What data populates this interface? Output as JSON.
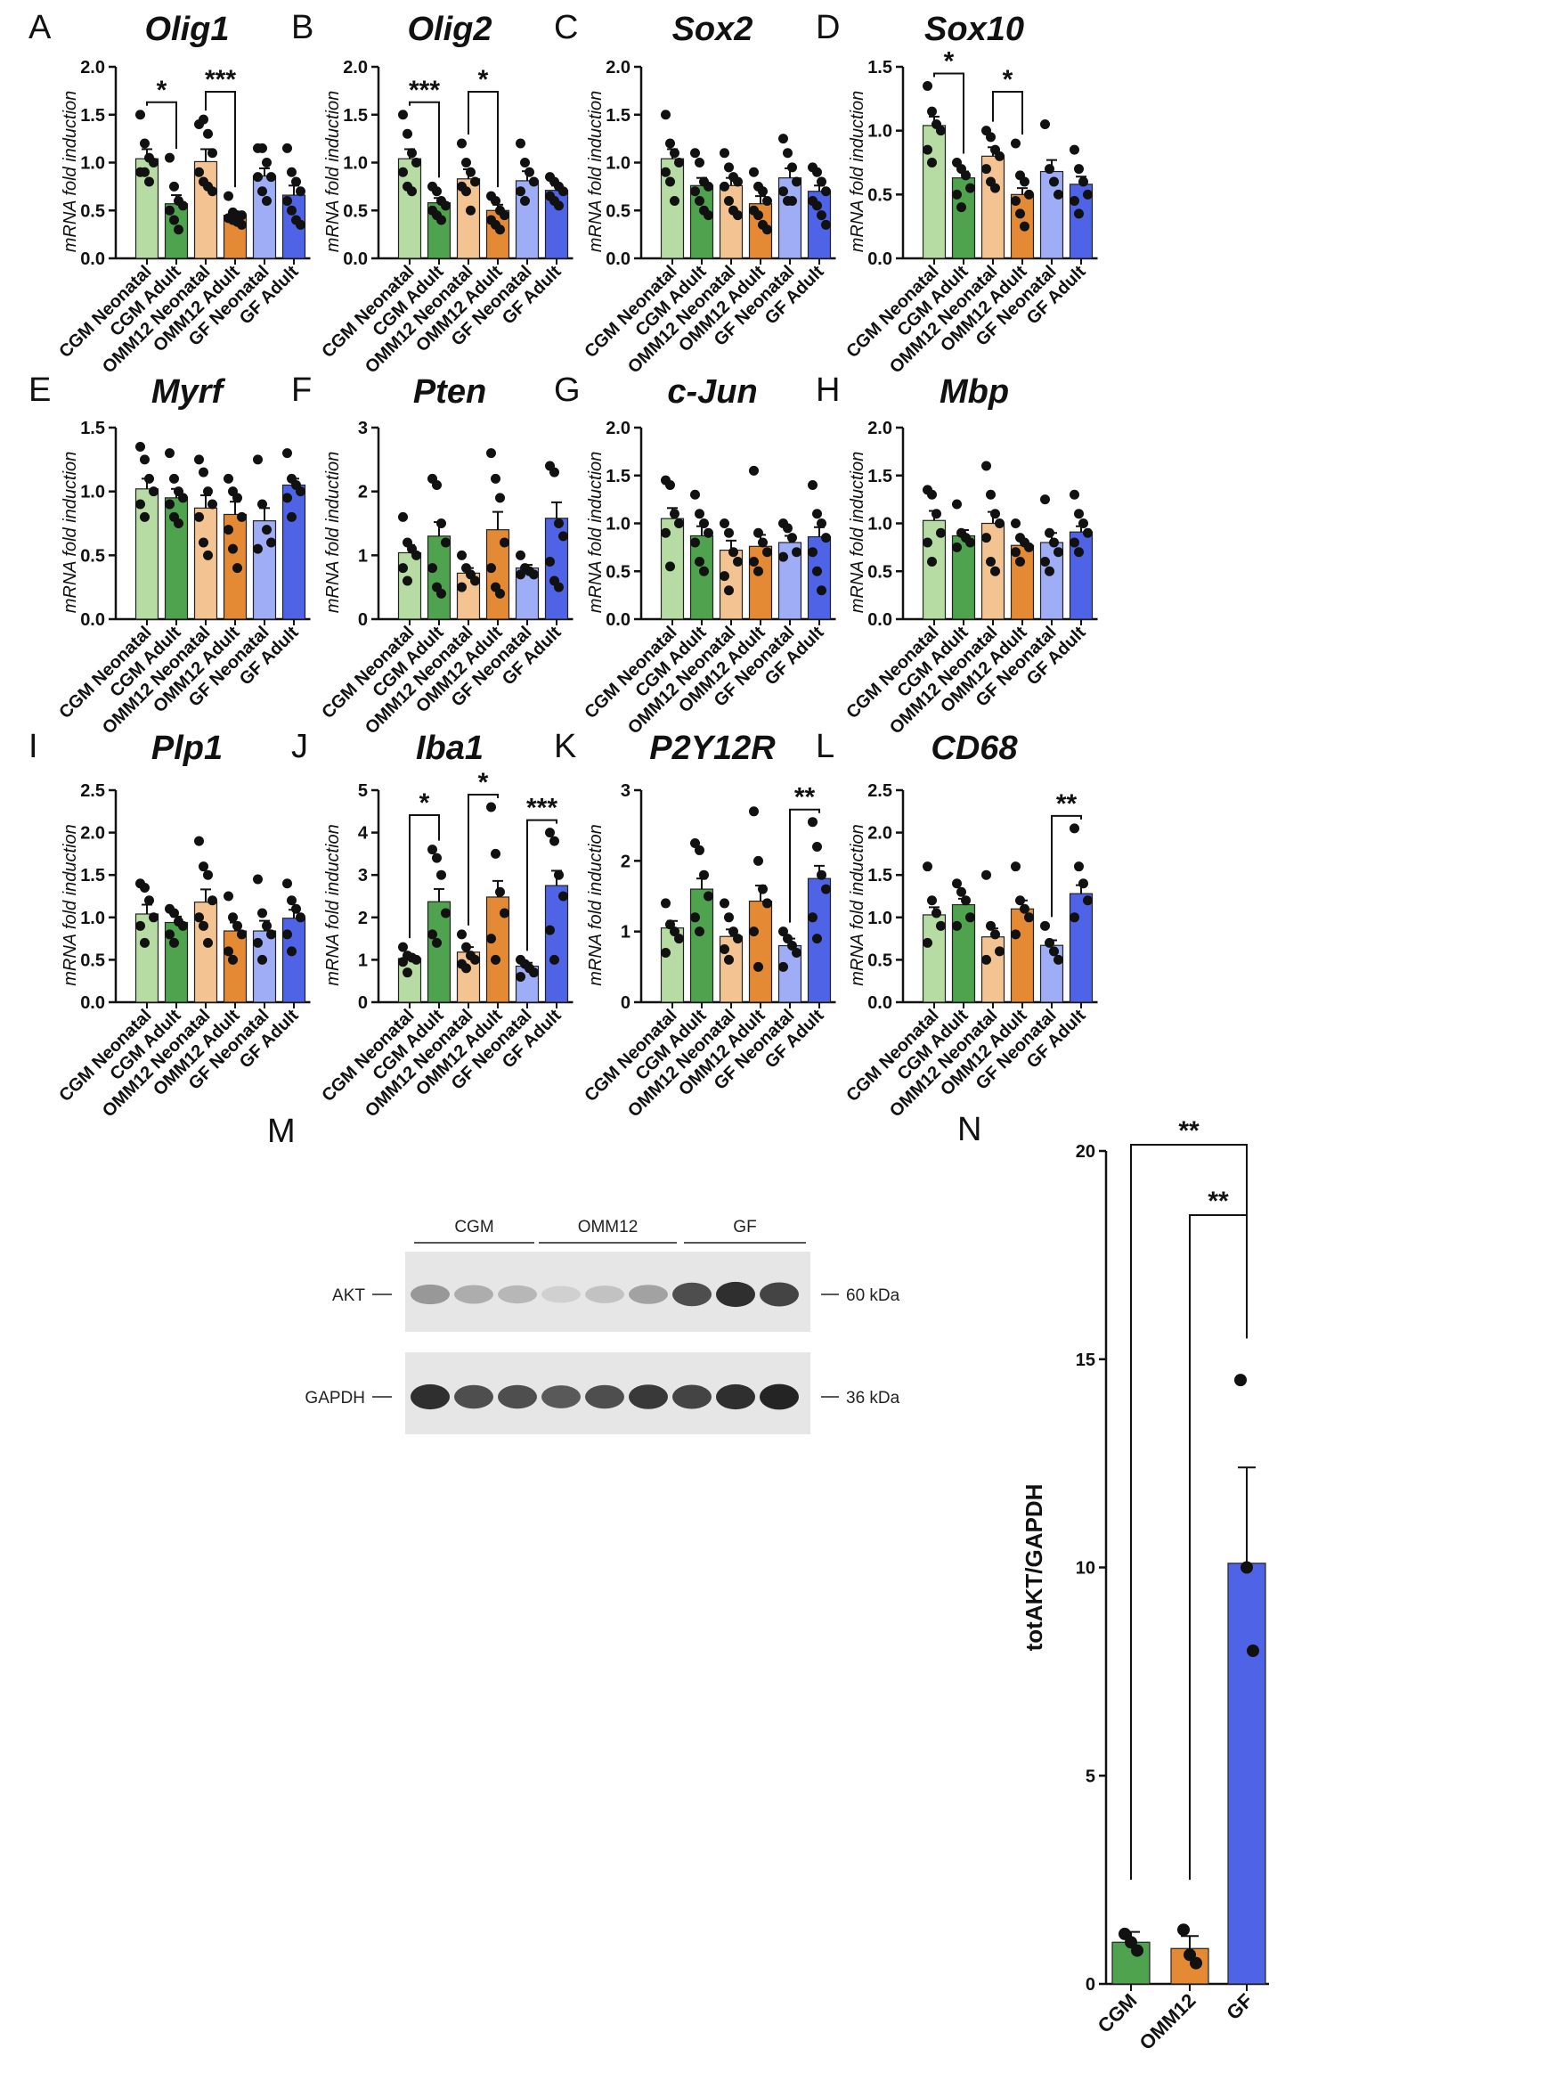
{
  "figure": {
    "ylabel_mrna": "mRNA  fold induction"
  },
  "colors": {
    "CGM Neonatal": "#b6dba3",
    "CGM Adult": "#4fa24e",
    "OMM12 Neonatal": "#f3c391",
    "OMM12 Adult": "#e48a34",
    "GF Neonatal": "#9eadf5",
    "GF Adult": "#4f63e6",
    "dot": "#111111"
  },
  "chart_data": [
    {
      "panel": "A",
      "title": "Olig1",
      "type": "bar",
      "ylim": [
        0,
        2.0
      ],
      "yticks": [
        "0.0",
        "0.5",
        "1.0",
        "1.5",
        "2.0"
      ],
      "categories": [
        "CGM Neonatal",
        "CGM Adult",
        "OMM12 Neonatal",
        "OMM12 Adult",
        "GF Neonatal",
        "GF Adult"
      ],
      "values": [
        1.04,
        0.57,
        1.01,
        0.45,
        0.86,
        0.66
      ],
      "sem": [
        0.1,
        0.09,
        0.13,
        0.03,
        0.08,
        0.1
      ],
      "points": [
        [
          1.5,
          1.2,
          1.05,
          1.0,
          0.9,
          0.9,
          0.8
        ],
        [
          1.05,
          0.75,
          0.6,
          0.55,
          0.5,
          0.4,
          0.3
        ],
        [
          1.4,
          1.45,
          1.3,
          1.1,
          0.9,
          0.8,
          0.75,
          0.7
        ],
        [
          0.65,
          0.48,
          0.45,
          0.45,
          0.42,
          0.4,
          0.38,
          0.35
        ],
        [
          1.15,
          1.15,
          1.0,
          0.85,
          0.85,
          0.7,
          0.6
        ],
        [
          1.15,
          0.9,
          0.8,
          0.7,
          0.6,
          0.5,
          0.4,
          0.35
        ]
      ],
      "significance": [
        {
          "from": 0,
          "to": 1,
          "label": "*"
        },
        {
          "from": 2,
          "to": 3,
          "label": "***"
        }
      ]
    },
    {
      "panel": "B",
      "title": "Olig2",
      "type": "bar",
      "ylim": [
        0,
        2.0
      ],
      "yticks": [
        "0.0",
        "0.5",
        "1.0",
        "1.5",
        "2.0"
      ],
      "categories": [
        "CGM Neonatal",
        "CGM Adult",
        "OMM12 Neonatal",
        "OMM12 Adult",
        "GF Neonatal",
        "GF Adult"
      ],
      "values": [
        1.04,
        0.58,
        0.83,
        0.5,
        0.81,
        0.71
      ],
      "sem": [
        0.1,
        0.05,
        0.1,
        0.06,
        0.1,
        0.05
      ],
      "points": [
        [
          1.5,
          1.3,
          1.1,
          1.0,
          0.9,
          0.75,
          0.7
        ],
        [
          0.75,
          0.7,
          0.6,
          0.55,
          0.5,
          0.45,
          0.4
        ],
        [
          1.2,
          1.0,
          0.9,
          0.8,
          0.75,
          0.7,
          0.5
        ],
        [
          0.65,
          0.6,
          0.5,
          0.45,
          0.4,
          0.35,
          0.3
        ],
        [
          1.2,
          1.0,
          0.9,
          0.8,
          0.7,
          0.6
        ],
        [
          0.85,
          0.8,
          0.75,
          0.7,
          0.65,
          0.6,
          0.55
        ]
      ],
      "significance": [
        {
          "from": 0,
          "to": 1,
          "label": "***"
        },
        {
          "from": 2,
          "to": 3,
          "label": "*"
        }
      ]
    },
    {
      "panel": "C",
      "title": "Sox2",
      "type": "bar",
      "ylim": [
        0,
        2.0
      ],
      "yticks": [
        "0.0",
        "0.5",
        "1.0",
        "1.5",
        "2.0"
      ],
      "categories": [
        "CGM Neonatal",
        "CGM Adult",
        "OMM12 Neonatal",
        "OMM12 Adult",
        "GF Neonatal",
        "GF Adult"
      ],
      "values": [
        1.04,
        0.76,
        0.76,
        0.57,
        0.84,
        0.7
      ],
      "sem": [
        0.1,
        0.08,
        0.08,
        0.08,
        0.1,
        0.06
      ],
      "points": [
        [
          1.5,
          1.2,
          1.1,
          1.0,
          0.9,
          0.8,
          0.6
        ],
        [
          1.1,
          1.0,
          0.8,
          0.75,
          0.7,
          0.6,
          0.5,
          0.45
        ],
        [
          1.1,
          0.95,
          0.85,
          0.8,
          0.75,
          0.6,
          0.5,
          0.45
        ],
        [
          0.9,
          0.75,
          0.7,
          0.6,
          0.5,
          0.45,
          0.35,
          0.3
        ],
        [
          1.25,
          1.1,
          0.95,
          0.8,
          0.7,
          0.6,
          0.6
        ],
        [
          0.95,
          0.9,
          0.8,
          0.7,
          0.6,
          0.55,
          0.45,
          0.35
        ]
      ],
      "significance": []
    },
    {
      "panel": "D",
      "title": "Sox10",
      "type": "bar",
      "ylim": [
        0,
        1.5
      ],
      "yticks": [
        "0.0",
        "0.5",
        "1.0",
        "1.5"
      ],
      "categories": [
        "CGM Neonatal",
        "CGM Adult",
        "OMM12 Neonatal",
        "OMM12 Adult",
        "GF Neonatal",
        "GF Adult"
      ],
      "values": [
        1.04,
        0.63,
        0.8,
        0.5,
        0.68,
        0.58
      ],
      "sem": [
        0.07,
        0.05,
        0.07,
        0.05,
        0.09,
        0.06
      ],
      "points": [
        [
          1.35,
          1.15,
          1.05,
          1.0,
          0.85,
          0.75
        ],
        [
          0.75,
          0.7,
          0.65,
          0.55,
          0.5,
          0.4
        ],
        [
          1.0,
          0.95,
          0.85,
          0.8,
          0.7,
          0.6,
          0.55
        ],
        [
          0.9,
          0.65,
          0.6,
          0.5,
          0.45,
          0.35,
          0.25
        ],
        [
          1.05,
          0.7,
          0.6,
          0.5
        ],
        [
          0.85,
          0.7,
          0.6,
          0.5,
          0.45,
          0.35
        ]
      ],
      "significance": [
        {
          "from": 0,
          "to": 1,
          "label": "*"
        },
        {
          "from": 2,
          "to": 3,
          "label": "*"
        }
      ]
    },
    {
      "panel": "E",
      "title": "Myrf",
      "type": "bar",
      "ylim": [
        0,
        1.5
      ],
      "yticks": [
        "0.0",
        "0.5",
        "1.0",
        "1.5"
      ],
      "categories": [
        "CGM Neonatal",
        "CGM Adult",
        "OMM12 Neonatal",
        "OMM12 Adult",
        "GF Neonatal",
        "GF Adult"
      ],
      "values": [
        1.02,
        0.95,
        0.87,
        0.82,
        0.77,
        1.05
      ],
      "sem": [
        0.08,
        0.07,
        0.1,
        0.1,
        0.1,
        0.05
      ],
      "points": [
        [
          1.35,
          1.25,
          1.1,
          1.0,
          0.9,
          0.8
        ],
        [
          1.3,
          1.1,
          1.0,
          0.95,
          0.9,
          0.8,
          0.75
        ],
        [
          1.25,
          1.15,
          1.0,
          0.9,
          0.8,
          0.6,
          0.5
        ],
        [
          1.1,
          1.0,
          0.95,
          0.8,
          0.7,
          0.55,
          0.4
        ],
        [
          1.25,
          0.9,
          0.7,
          0.6,
          0.55
        ],
        [
          1.3,
          1.1,
          1.05,
          1.0,
          0.95,
          0.8
        ]
      ],
      "significance": []
    },
    {
      "panel": "F",
      "title": "Pten",
      "type": "bar",
      "ylim": [
        0,
        3
      ],
      "yticks": [
        "0",
        "1",
        "2",
        "3"
      ],
      "categories": [
        "CGM Neonatal",
        "CGM Adult",
        "OMM12 Neonatal",
        "OMM12 Adult",
        "GF Neonatal",
        "GF Adult"
      ],
      "values": [
        1.04,
        1.3,
        0.72,
        1.4,
        0.8,
        1.58
      ],
      "sem": [
        0.12,
        0.22,
        0.08,
        0.28,
        0.05,
        0.25
      ],
      "points": [
        [
          1.6,
          1.2,
          1.1,
          1.0,
          0.8,
          0.6
        ],
        [
          2.2,
          2.1,
          1.5,
          1.2,
          0.8,
          0.5,
          0.4
        ],
        [
          1.0,
          0.8,
          0.7,
          0.6,
          0.5
        ],
        [
          2.6,
          2.2,
          1.9,
          1.2,
          0.8,
          0.5,
          0.4
        ],
        [
          1.0,
          0.8,
          0.75,
          0.7,
          0.7
        ],
        [
          2.4,
          2.3,
          1.5,
          1.3,
          0.9,
          0.6,
          0.5
        ]
      ],
      "significance": []
    },
    {
      "panel": "G",
      "title": "c-Jun",
      "type": "bar",
      "ylim": [
        0,
        2.0
      ],
      "yticks": [
        "0.0",
        "0.5",
        "1.0",
        "1.5",
        "2.0"
      ],
      "categories": [
        "CGM Neonatal",
        "CGM Adult",
        "OMM12 Neonatal",
        "OMM12 Adult",
        "GF Neonatal",
        "GF Adult"
      ],
      "values": [
        1.05,
        0.87,
        0.72,
        0.76,
        0.8,
        0.86
      ],
      "sem": [
        0.11,
        0.1,
        0.1,
        0.12,
        0.07,
        0.1
      ],
      "points": [
        [
          1.45,
          1.4,
          1.1,
          1.0,
          0.9,
          0.55
        ],
        [
          1.3,
          1.1,
          1.0,
          0.9,
          0.8,
          0.6,
          0.5
        ],
        [
          1.0,
          0.9,
          0.7,
          0.6,
          0.45,
          0.3
        ],
        [
          1.55,
          0.9,
          0.8,
          0.7,
          0.6,
          0.5
        ],
        [
          1.0,
          0.95,
          0.85,
          0.7,
          0.65
        ],
        [
          1.4,
          1.1,
          1.0,
          0.85,
          0.7,
          0.5,
          0.3
        ]
      ],
      "significance": []
    },
    {
      "panel": "H",
      "title": "Mbp",
      "type": "bar",
      "ylim": [
        0,
        2.0
      ],
      "yticks": [
        "0.0",
        "0.5",
        "1.0",
        "1.5",
        "2.0"
      ],
      "categories": [
        "CGM Neonatal",
        "CGM Adult",
        "OMM12 Neonatal",
        "OMM12 Adult",
        "GF Neonatal",
        "GF Adult"
      ],
      "values": [
        1.03,
        0.87,
        1.0,
        0.77,
        0.8,
        0.91
      ],
      "sem": [
        0.1,
        0.06,
        0.12,
        0.05,
        0.1,
        0.06
      ],
      "points": [
        [
          1.35,
          1.3,
          1.1,
          0.9,
          0.8,
          0.6
        ],
        [
          1.2,
          0.9,
          0.85,
          0.8,
          0.75
        ],
        [
          1.6,
          1.3,
          1.1,
          1.0,
          0.85,
          0.6,
          0.5
        ],
        [
          1.0,
          0.85,
          0.8,
          0.75,
          0.7,
          0.6
        ],
        [
          1.25,
          0.9,
          0.8,
          0.7,
          0.6,
          0.5
        ],
        [
          1.3,
          1.1,
          1.0,
          0.9,
          0.8,
          0.7
        ]
      ],
      "significance": []
    },
    {
      "panel": "I",
      "title": "Plp1",
      "type": "bar",
      "ylim": [
        0,
        2.5
      ],
      "yticks": [
        "0.0",
        "0.5",
        "1.0",
        "1.5",
        "2.0",
        "2.5"
      ],
      "categories": [
        "CGM Neonatal",
        "CGM Adult",
        "OMM12 Neonatal",
        "OMM12 Adult",
        "GF Neonatal",
        "GF Adult"
      ],
      "values": [
        1.04,
        0.94,
        1.18,
        0.84,
        0.84,
        0.99
      ],
      "sem": [
        0.11,
        0.07,
        0.15,
        0.1,
        0.12,
        0.1
      ],
      "points": [
        [
          1.4,
          1.35,
          1.2,
          1.0,
          0.9,
          0.7
        ],
        [
          1.1,
          1.05,
          0.95,
          0.9,
          0.8,
          0.7
        ],
        [
          1.9,
          1.6,
          1.5,
          1.2,
          1.0,
          0.9,
          0.7
        ],
        [
          1.25,
          1.0,
          0.9,
          0.8,
          0.6,
          0.5
        ],
        [
          1.45,
          1.05,
          0.9,
          0.8,
          0.7,
          0.5
        ],
        [
          1.4,
          1.2,
          1.1,
          1.0,
          0.8,
          0.6
        ]
      ],
      "significance": []
    },
    {
      "panel": "J",
      "title": "Iba1",
      "type": "bar",
      "ylim": [
        0,
        5
      ],
      "yticks": [
        "0",
        "1",
        "2",
        "3",
        "4",
        "5"
      ],
      "categories": [
        "CGM Neonatal",
        "CGM Adult",
        "OMM12 Neonatal",
        "OMM12 Adult",
        "GF Neonatal",
        "GF Adult"
      ],
      "values": [
        1.03,
        2.37,
        1.18,
        2.48,
        0.85,
        2.75
      ],
      "sem": [
        0.06,
        0.3,
        0.12,
        0.38,
        0.08,
        0.35
      ],
      "points": [
        [
          1.3,
          1.1,
          1.05,
          1.0,
          0.95,
          0.7
        ],
        [
          3.6,
          3.4,
          3.0,
          2.1,
          1.6,
          1.4
        ],
        [
          1.6,
          1.3,
          1.1,
          1.0,
          0.9,
          0.8
        ],
        [
          4.6,
          3.5,
          2.6,
          2.1,
          1.5,
          1.0
        ],
        [
          1.0,
          0.9,
          0.8,
          0.7,
          0.6
        ],
        [
          4.0,
          3.8,
          3.0,
          2.5,
          1.7,
          1.0
        ]
      ],
      "significance": [
        {
          "from": 0,
          "to": 1,
          "label": "*"
        },
        {
          "from": 2,
          "to": 3,
          "label": "*"
        },
        {
          "from": 4,
          "to": 5,
          "label": "***"
        }
      ]
    },
    {
      "panel": "K",
      "title": "P2Y12R",
      "type": "bar",
      "ylim": [
        0,
        3
      ],
      "yticks": [
        "0",
        "1",
        "2",
        "3"
      ],
      "categories": [
        "CGM Neonatal",
        "CGM Adult",
        "OMM12 Neonatal",
        "OMM12 Adult",
        "GF Neonatal",
        "GF Adult"
      ],
      "values": [
        1.05,
        1.6,
        0.93,
        1.43,
        0.8,
        1.75
      ],
      "sem": [
        0.1,
        0.15,
        0.1,
        0.22,
        0.1,
        0.18
      ],
      "points": [
        [
          1.4,
          1.1,
          1.0,
          0.9,
          0.7
        ],
        [
          2.25,
          2.15,
          1.8,
          1.5,
          1.2,
          1.0
        ],
        [
          1.4,
          1.2,
          1.0,
          0.9,
          0.75,
          0.6
        ],
        [
          2.7,
          2.0,
          1.6,
          1.4,
          1.0,
          0.5
        ],
        [
          1.0,
          0.9,
          0.8,
          0.7,
          0.5
        ],
        [
          2.55,
          2.2,
          1.8,
          1.6,
          1.2,
          0.9
        ]
      ],
      "significance": [
        {
          "from": 4,
          "to": 5,
          "label": "**"
        }
      ]
    },
    {
      "panel": "L",
      "title": "CD68",
      "type": "bar",
      "ylim": [
        0,
        2.5
      ],
      "yticks": [
        "0.0",
        "0.5",
        "1.0",
        "1.5",
        "2.0",
        "2.5"
      ],
      "categories": [
        "CGM Neonatal",
        "CGM Adult",
        "OMM12 Neonatal",
        "OMM12 Adult",
        "GF Neonatal",
        "GF Adult"
      ],
      "values": [
        1.03,
        1.15,
        0.77,
        1.1,
        0.67,
        1.28
      ],
      "sem": [
        0.09,
        0.07,
        0.1,
        0.1,
        0.06,
        0.1
      ],
      "points": [
        [
          1.6,
          1.2,
          1.05,
          0.9,
          0.7
        ],
        [
          1.4,
          1.3,
          1.2,
          1.0,
          0.9
        ],
        [
          1.5,
          0.9,
          0.8,
          0.6,
          0.5
        ],
        [
          1.6,
          1.2,
          1.1,
          1.0,
          0.8
        ],
        [
          0.9,
          0.7,
          0.6,
          0.5
        ],
        [
          2.05,
          1.6,
          1.4,
          1.2,
          1.0
        ]
      ],
      "significance": [
        {
          "from": 4,
          "to": 5,
          "label": "**"
        }
      ]
    },
    {
      "panel": "N",
      "title": "",
      "type": "bar",
      "ylabel": "totAKT/GAPDH",
      "ylim": [
        0,
        20
      ],
      "yticks": [
        "0",
        "5",
        "10",
        "15",
        "20"
      ],
      "categories": [
        "CGM",
        "OMM12",
        "GF"
      ],
      "values": [
        1.0,
        0.85,
        10.1
      ],
      "sem": [
        0.25,
        0.3,
        2.3
      ],
      "points": [
        [
          1.2,
          1.0,
          0.8
        ],
        [
          1.3,
          0.7,
          0.5
        ],
        [
          14.5,
          10.0,
          8.0
        ]
      ],
      "colors": [
        "#4fa24e",
        "#e48a34",
        "#4f63e6"
      ],
      "significance": [
        {
          "from": 0,
          "to": 2,
          "label": "**"
        },
        {
          "from": 1,
          "to": 2,
          "label": "**"
        }
      ]
    }
  ],
  "blot": {
    "panel": "M",
    "groups": [
      "CGM",
      "OMM12",
      "GF"
    ],
    "rows": [
      {
        "name": "AKT",
        "size": "60 kDa",
        "intensities": [
          0.35,
          0.25,
          0.2,
          0.08,
          0.15,
          0.3,
          0.7,
          0.85,
          0.75
        ]
      },
      {
        "name": "GAPDH",
        "size": "36 kDa",
        "intensities": [
          0.85,
          0.7,
          0.7,
          0.65,
          0.7,
          0.8,
          0.75,
          0.85,
          0.9
        ]
      }
    ]
  }
}
